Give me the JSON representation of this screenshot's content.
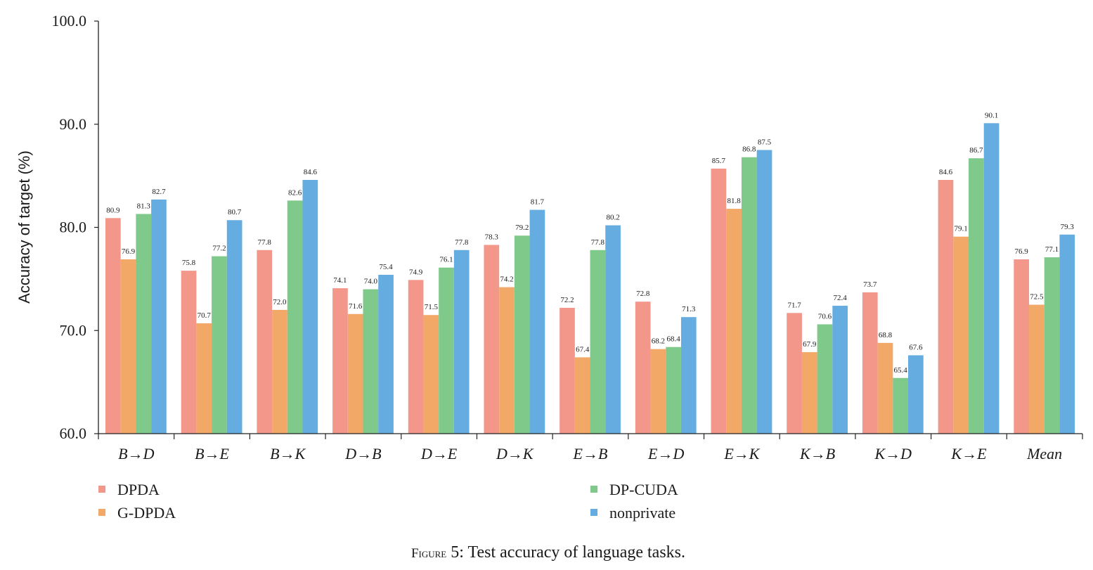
{
  "caption": {
    "prefix": "Figure",
    "rest": " 5: Test accuracy of language tasks."
  },
  "chart_data": {
    "type": "bar",
    "ylabel": "Accuracy of target (%)",
    "xlabel": "",
    "ylim": [
      60.0,
      100.0
    ],
    "yticks": [
      "60.0",
      "70.0",
      "80.0",
      "90.0",
      "100.0"
    ],
    "grid": false,
    "legend_position": "bottom",
    "categories": [
      "B→D",
      "B→E",
      "B→K",
      "D→B",
      "D→E",
      "D→K",
      "E→B",
      "E→D",
      "E→K",
      "K→B",
      "K→D",
      "K→E",
      "Mean"
    ],
    "series": [
      {
        "name": "DPDA",
        "color": "#f4978b",
        "values": [
          80.9,
          75.8,
          77.8,
          74.1,
          74.9,
          78.3,
          72.2,
          72.8,
          85.7,
          71.7,
          73.7,
          84.6,
          76.9
        ]
      },
      {
        "name": "G-DPDA",
        "color": "#f2a867",
        "values": [
          76.9,
          70.7,
          72.0,
          71.6,
          71.5,
          74.2,
          67.4,
          68.2,
          81.8,
          67.9,
          68.8,
          79.1,
          72.5
        ]
      },
      {
        "name": "DP-CUDA",
        "color": "#7fc98a",
        "values": [
          81.3,
          77.2,
          82.6,
          74.0,
          76.1,
          79.2,
          77.8,
          68.4,
          86.8,
          70.6,
          65.4,
          86.7,
          77.1
        ]
      },
      {
        "name": "nonprivate",
        "color": "#65ade0",
        "values": [
          82.7,
          80.7,
          84.6,
          75.4,
          77.8,
          81.7,
          80.2,
          71.3,
          87.5,
          72.4,
          67.6,
          90.1,
          79.3
        ]
      }
    ]
  }
}
